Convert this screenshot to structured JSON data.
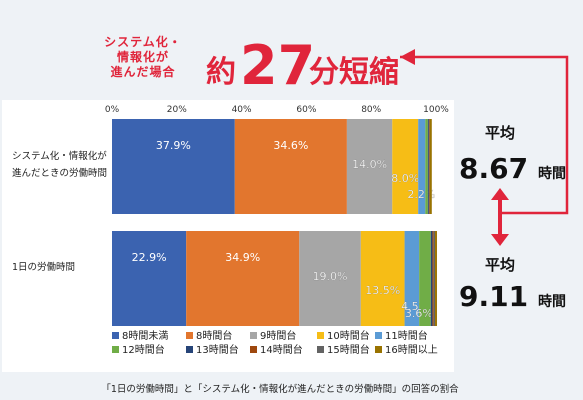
{
  "header": {
    "condition": "システム化・情報化が進んだ場合",
    "condition_lines": [
      "システム化・",
      "情報化が",
      "進んだ場合"
    ],
    "prefix": "約",
    "number": "27",
    "suffix": "分短縮"
  },
  "chart_data": {
    "type": "bar",
    "orientation": "horizontal",
    "stacked": true,
    "xlim": [
      0,
      100
    ],
    "x_ticks": [
      "0%",
      "20%",
      "40%",
      "60%",
      "80%",
      "100%"
    ],
    "grid": false,
    "legend_position": "bottom",
    "categories": [
      "システム化・情報化が進んだときの労働時間",
      "1日の労働時間"
    ],
    "category_lines": [
      [
        "システム化・情報化が",
        "進んだときの労働時間"
      ],
      [
        "1日の労働時間"
      ]
    ],
    "series": [
      {
        "name": "8時間未満",
        "color": "#3b63b0",
        "values": [
          37.9,
          22.9
        ],
        "labels": [
          "37.9%",
          "22.9%"
        ]
      },
      {
        "name": "8時間台",
        "color": "#e2762e",
        "values": [
          34.6,
          34.9
        ],
        "labels": [
          "34.6%",
          "34.9%"
        ]
      },
      {
        "name": "9時間台",
        "color": "#a6a6a6",
        "values": [
          14.0,
          19.0
        ],
        "labels": [
          "14.0%",
          "19.0%"
        ]
      },
      {
        "name": "10時間台",
        "color": "#f6bd16",
        "values": [
          8.0,
          13.5
        ],
        "labels": [
          "8.0%",
          "13.5%"
        ]
      },
      {
        "name": "11時間台",
        "color": "#5b9bd5",
        "values": [
          2.2,
          4.5
        ],
        "labels": [
          "2.2%",
          "4.5%"
        ]
      },
      {
        "name": "12時間台",
        "color": "#70ad47",
        "values": [
          0.8,
          3.6
        ],
        "labels": [
          "",
          "3.6%"
        ]
      },
      {
        "name": "13時間台",
        "color": "#264478",
        "values": [
          0.3,
          0.5
        ],
        "labels": [
          "",
          ""
        ]
      },
      {
        "name": "14時間台",
        "color": "#9e480e",
        "values": [
          0.2,
          0.4
        ],
        "labels": [
          "",
          ""
        ]
      },
      {
        "name": "15時間台",
        "color": "#636363",
        "values": [
          0.1,
          0.4
        ],
        "labels": [
          "",
          ""
        ]
      },
      {
        "name": "16時間以上",
        "color": "#997300",
        "values": [
          0.6,
          0.6
        ],
        "labels": [
          "",
          ""
        ]
      }
    ],
    "annotations": [
      {
        "label": "平均",
        "value": "8.67",
        "unit": "時間"
      },
      {
        "label": "平均",
        "value": "9.11",
        "unit": "時間"
      }
    ],
    "caption": "「1日の労働時間」と「システム化・情報化が進んだときの労働時間」の回答の割合"
  },
  "colors": {
    "accent": "#e0253b",
    "background": "#eef2f6",
    "panel": "#ffffff",
    "text": "#222222"
  }
}
